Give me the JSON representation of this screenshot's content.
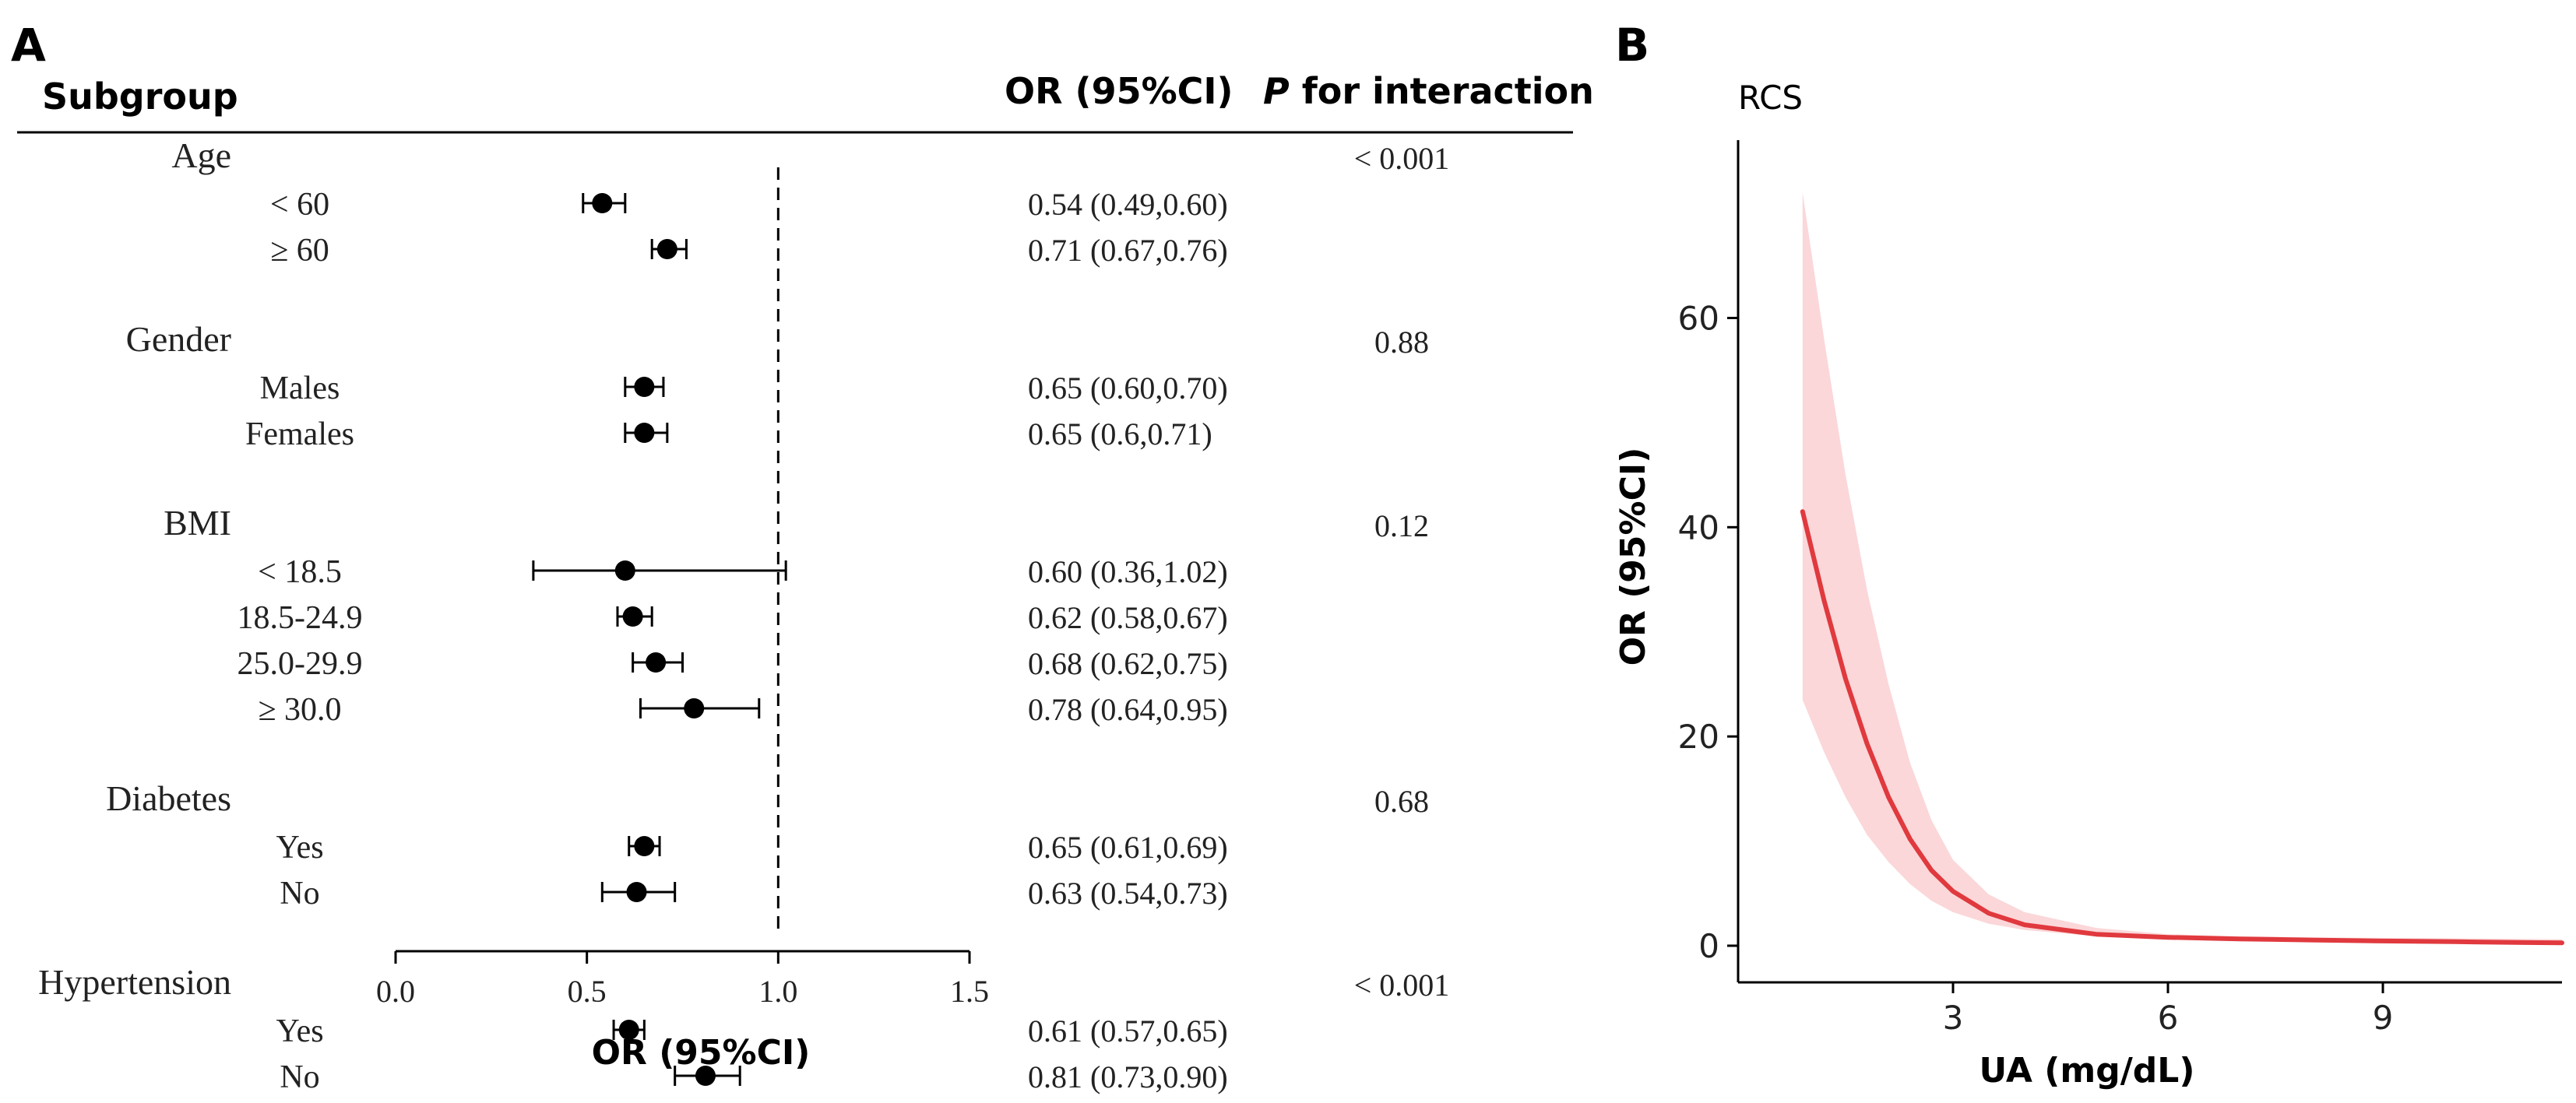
{
  "panel_a": {
    "letter": "A",
    "subgroup_header": "Subgroup",
    "or_header": "OR (95%CI)",
    "p_header_italic": "P",
    "p_header_rest": " for interaction",
    "xlabel": "OR (95%CI)"
  },
  "panel_b": {
    "letter": "B",
    "title": "RCS",
    "xlabel": "UA (mg/dL)",
    "ylabel": "OR (95%CI)"
  },
  "colors": {
    "curve": "#e0393e",
    "band": "#f9c9cc",
    "ink": "#000000"
  },
  "chart_data": [
    {
      "type": "forest",
      "xlim": [
        0,
        1.5
      ],
      "x_ticks": [
        "0.0",
        "0.5",
        "1.0",
        "1.5"
      ],
      "reference_line": 1.0,
      "xlabel": "OR (95%CI)",
      "groups": [
        {
          "name": "Age",
          "p": "< 0.001",
          "rows": [
            {
              "label": "< 60",
              "or": 0.54,
              "lo": 0.49,
              "hi": 0.6,
              "text": "0.54 (0.49,0.60)"
            },
            {
              "label": "≥ 60",
              "or": 0.71,
              "lo": 0.67,
              "hi": 0.76,
              "text": "0.71 (0.67,0.76)"
            }
          ]
        },
        {
          "name": "Gender",
          "p": "0.88",
          "rows": [
            {
              "label": "Males",
              "or": 0.65,
              "lo": 0.6,
              "hi": 0.7,
              "text": "0.65 (0.60,0.70)"
            },
            {
              "label": "Females",
              "or": 0.65,
              "lo": 0.6,
              "hi": 0.71,
              "text": "0.65 (0.6,0.71)"
            }
          ]
        },
        {
          "name": "BMI",
          "p": "0.12",
          "rows": [
            {
              "label": "< 18.5",
              "or": 0.6,
              "lo": 0.36,
              "hi": 1.02,
              "text": "0.60 (0.36,1.02)"
            },
            {
              "label": "18.5-24.9",
              "or": 0.62,
              "lo": 0.58,
              "hi": 0.67,
              "text": "0.62 (0.58,0.67)"
            },
            {
              "label": "25.0-29.9",
              "or": 0.68,
              "lo": 0.62,
              "hi": 0.75,
              "text": "0.68 (0.62,0.75)"
            },
            {
              "label": "≥ 30.0",
              "or": 0.78,
              "lo": 0.64,
              "hi": 0.95,
              "text": "0.78 (0.64,0.95)"
            }
          ]
        },
        {
          "name": "Diabetes",
          "p": "0.68",
          "rows": [
            {
              "label": "Yes",
              "or": 0.65,
              "lo": 0.61,
              "hi": 0.69,
              "text": "0.65 (0.61,0.69)"
            },
            {
              "label": "No",
              "or": 0.63,
              "lo": 0.54,
              "hi": 0.73,
              "text": "0.63 (0.54,0.73)"
            }
          ]
        },
        {
          "name": "Hypertension",
          "p": "< 0.001",
          "rows": [
            {
              "label": "Yes",
              "or": 0.61,
              "lo": 0.57,
              "hi": 0.65,
              "text": "0.61 (0.57,0.65)"
            },
            {
              "label": "No",
              "or": 0.81,
              "lo": 0.73,
              "hi": 0.9,
              "text": "0.81 (0.73,0.90)"
            }
          ]
        }
      ]
    },
    {
      "type": "line",
      "title": "RCS",
      "xlabel": "UA (mg/dL)",
      "ylabel": "OR (95%CI)",
      "xlim": [
        0,
        11.5
      ],
      "ylim": [
        -3.5,
        77
      ],
      "x_ticks": [
        3,
        6,
        9
      ],
      "y_ticks": [
        0,
        20,
        40,
        60
      ],
      "series": [
        {
          "x": [
            0.9,
            1.2,
            1.5,
            1.8,
            2.1,
            2.4,
            2.7,
            3.0,
            3.5,
            4.0,
            5.0,
            6.0,
            7.0,
            8.0,
            9.0,
            10.0,
            11.0,
            11.5
          ],
          "y": [
            41.5,
            33.0,
            25.5,
            19.3,
            14.2,
            10.2,
            7.2,
            5.2,
            3.1,
            2.0,
            1.1,
            0.8,
            0.65,
            0.55,
            0.45,
            0.38,
            0.3,
            0.28
          ],
          "lower": [
            23.5,
            18.5,
            14.2,
            10.6,
            8.0,
            5.9,
            4.3,
            3.2,
            2.1,
            1.5,
            0.9,
            0.65,
            0.5,
            0.4,
            0.3,
            0.22,
            0.12,
            0.1
          ],
          "upper": [
            72.0,
            58.0,
            45.0,
            34.0,
            25.0,
            17.5,
            12.0,
            8.2,
            4.9,
            3.2,
            1.7,
            1.1,
            0.9,
            0.8,
            0.75,
            0.7,
            0.65,
            0.62
          ]
        }
      ]
    }
  ]
}
